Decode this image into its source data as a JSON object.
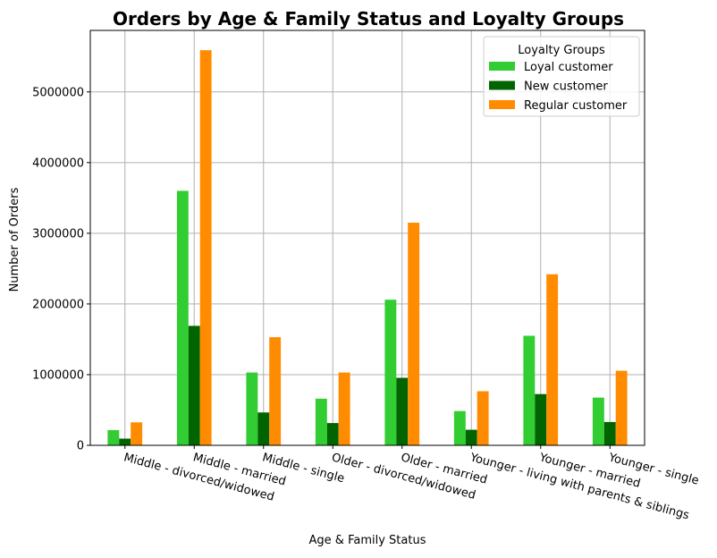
{
  "chart_data": {
    "type": "bar",
    "title": "Orders by Age & Family Status and Loyalty Groups",
    "xlabel": "Age & Family Status",
    "ylabel": "Number of Orders",
    "categories": [
      "Middle - divorced/widowed",
      "Middle - married",
      "Middle - single",
      "Older - divorced/widowed",
      "Older - married",
      "Younger - living with parents & siblings",
      "Younger - married",
      "Younger - single"
    ],
    "series": [
      {
        "name": "Loyal customer",
        "color": "#32cd32",
        "values": [
          215000,
          3600000,
          1030000,
          660000,
          2060000,
          485000,
          1550000,
          675000
        ]
      },
      {
        "name": "New customer",
        "color": "#006400",
        "values": [
          95000,
          1690000,
          465000,
          315000,
          955000,
          220000,
          725000,
          330000
        ]
      },
      {
        "name": "Regular customer",
        "color": "#ff8c00",
        "values": [
          325000,
          5590000,
          1530000,
          1030000,
          3150000,
          765000,
          2420000,
          1055000
        ]
      }
    ],
    "ylim": [
      0,
      5870000
    ],
    "yticks": [
      0,
      1000000,
      2000000,
      3000000,
      4000000,
      5000000
    ],
    "ytick_labels": [
      "0",
      "1000000",
      "2000000",
      "3000000",
      "4000000",
      "5000000"
    ],
    "grid": true,
    "legend": {
      "title": "Loyalty Groups",
      "position": "upper-right"
    }
  }
}
